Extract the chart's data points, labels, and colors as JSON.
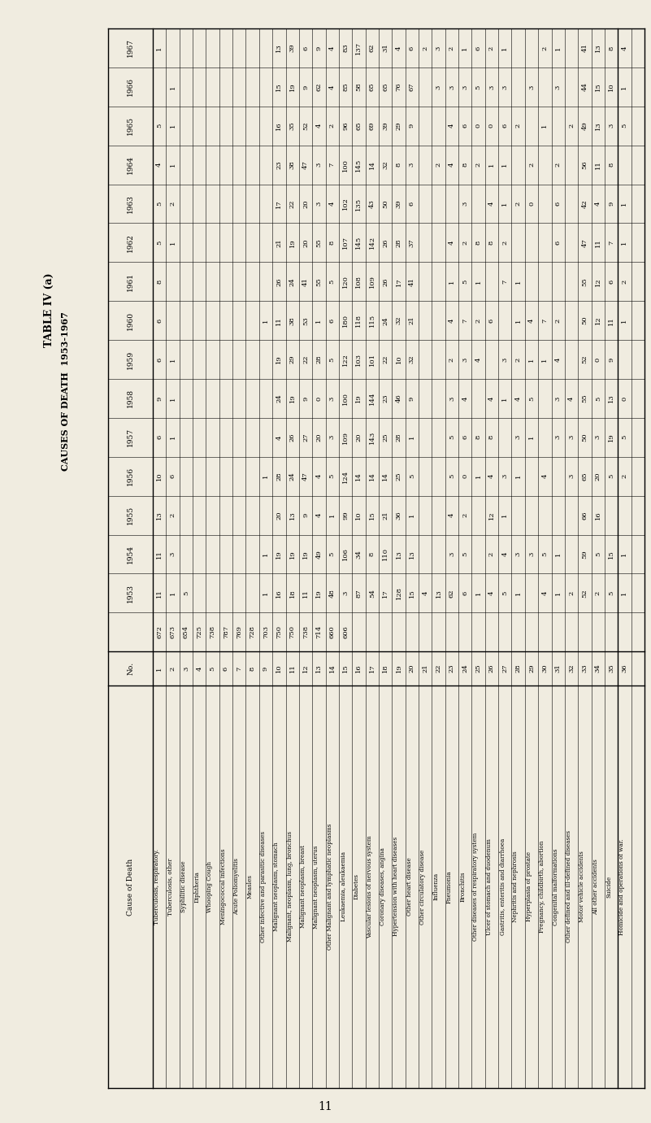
{
  "title1": "TABLE IV (a)",
  "title2": "CAUSES OF DEATH 1953-1967",
  "page_number": "11",
  "bg_color": "#f0ece0",
  "years": [
    "1967",
    "1966",
    "1965",
    "1964",
    "1963",
    "1962",
    "1961",
    "1960",
    "1959",
    "1958",
    "1957",
    "1956",
    "1955",
    "1954",
    "1953"
  ],
  "totals": [
    "672",
    "673",
    "654",
    "725",
    "738",
    "787",
    "769",
    "728",
    "703",
    "750",
    "750",
    "738",
    "714",
    "660",
    "606"
  ],
  "rows": [
    [
      "1",
      "Tuberculosis, respiratory.",
      "1",
      "",
      "5",
      "4",
      "5",
      "5",
      "8",
      "6",
      "6",
      "9",
      "6",
      "10",
      "13",
      "11",
      "11"
    ],
    [
      "2",
      "Tuberculosis, other",
      "",
      "1",
      "1",
      "1",
      "2",
      "1",
      "",
      "",
      "1",
      "1",
      "1",
      "6",
      "2",
      "3",
      "1"
    ],
    [
      "3",
      "Syphilitic disease",
      "",
      "",
      "",
      "",
      "",
      "",
      "",
      "",
      "",
      "",
      "",
      "",
      "",
      "",
      "5"
    ],
    [
      "4",
      "Diphtheria",
      "",
      "",
      "",
      "",
      "",
      "",
      "",
      "",
      "",
      "",
      "",
      "",
      "",
      "",
      ""
    ],
    [
      "5",
      "Whooping Cough",
      "",
      "",
      "",
      "",
      "",
      "",
      "",
      "",
      "",
      "",
      "",
      "",
      "",
      "",
      ""
    ],
    [
      "6",
      "Meningococcal infections",
      "",
      "",
      "",
      "",
      "",
      "",
      "",
      "",
      "",
      "",
      "",
      "",
      "",
      "",
      ""
    ],
    [
      "7",
      "Acute Poliomyelitis",
      "",
      "",
      "",
      "",
      "",
      "",
      "",
      "",
      "",
      "",
      "",
      "",
      "",
      "",
      ""
    ],
    [
      "8",
      "Measles",
      "",
      "",
      "",
      "",
      "",
      "",
      "",
      "",
      "",
      "",
      "",
      "",
      "",
      "",
      ""
    ],
    [
      "9",
      "Other infective and parasitic diseases",
      "",
      "",
      "",
      "",
      "",
      "",
      "",
      "1",
      "",
      "",
      "",
      "1",
      "",
      "1",
      "1"
    ],
    [
      "10",
      "Malignant neoplasm, stomach",
      "13",
      "15",
      "16",
      "23",
      "17",
      "21",
      "26",
      "11",
      "19",
      "24",
      "4",
      "28",
      "20",
      "19",
      "16"
    ],
    [
      "11",
      "Malignant, neoplasm, lung, bronchus",
      "39",
      "19",
      "35",
      "38",
      "22",
      "19",
      "24",
      "38",
      "29",
      "19",
      "26",
      "24",
      "13",
      "19",
      "18"
    ],
    [
      "12",
      "Malignant neoplasm, breast",
      "6",
      "9",
      "52",
      "47",
      "20",
      "20",
      "41",
      "53",
      "22",
      "9",
      "27",
      "47",
      "9",
      "19",
      "11"
    ],
    [
      "13",
      "Malignant neoplasm, uterus",
      "9",
      "62",
      "4",
      "3",
      "3",
      "55",
      "55",
      "1",
      "28",
      "0",
      "20",
      "4",
      "4",
      "49",
      "19"
    ],
    [
      "14",
      "Other Malignant and lymphatic neoplasms",
      "4",
      "4",
      "2",
      "7",
      "4",
      "8",
      "5",
      "6",
      "5",
      "3",
      "3",
      "5",
      "1",
      "5",
      "48"
    ],
    [
      "15",
      "Leukaemia, aleukaemia",
      "83",
      "85",
      "96",
      "100",
      "102",
      "107",
      "120",
      "180",
      "122",
      "100",
      "109",
      "124",
      "99",
      "106",
      "3"
    ],
    [
      "16",
      "Diabetes",
      "137",
      "58",
      "65",
      "145",
      "135",
      "145",
      "108",
      "118",
      "103",
      "19",
      "20",
      "14",
      "10",
      "34",
      "87"
    ],
    [
      "17",
      "Vascular lesions of nervous system",
      "62",
      "65",
      "69",
      "14",
      "43",
      "142",
      "109",
      "115",
      "101",
      "144",
      "143",
      "14",
      "15",
      "8",
      "54"
    ],
    [
      "18",
      "Coronary diseases, angina",
      "31",
      "65",
      "39",
      "32",
      "50",
      "26",
      "26",
      "24",
      "22",
      "23",
      "25",
      "14",
      "21",
      "110",
      "17"
    ],
    [
      "19",
      "Hypertension with heart diseases",
      "4",
      "76",
      "29",
      "8",
      "39",
      "28",
      "17",
      "32",
      "10",
      "46",
      "28",
      "25",
      "36",
      "13",
      "128"
    ],
    [
      "20",
      "Other heart disease",
      "6",
      "67",
      "9",
      "3",
      "6",
      "37",
      "41",
      "21",
      "32",
      "9",
      "1",
      "5",
      "1",
      "13",
      "15"
    ],
    [
      "21",
      "Other circulatory disease",
      "2",
      "",
      "",
      "",
      "",
      "",
      "",
      "",
      "",
      "",
      "",
      "",
      "",
      "",
      "4"
    ],
    [
      "22",
      "Influenza",
      "3",
      "3",
      "",
      "2",
      "",
      "",
      "",
      "",
      "",
      "",
      "",
      "",
      "",
      "",
      "13"
    ],
    [
      "23",
      "Pneumonia",
      "2",
      "3",
      "4",
      "4",
      "",
      "4",
      "1",
      "4",
      "2",
      "3",
      "5",
      "5",
      "4",
      "3",
      "62"
    ],
    [
      "24",
      "Bronchitis",
      "1",
      "3",
      "6",
      "8",
      "3",
      "2",
      "5",
      "7",
      "3",
      "4",
      "6",
      "0",
      "2",
      "5",
      "6"
    ],
    [
      "25",
      "Other diseases of respiratory system",
      "6",
      "5",
      "0",
      "2",
      "",
      "8",
      "1",
      "2",
      "4",
      "",
      "8",
      "1",
      "",
      "",
      "1"
    ],
    [
      "26",
      "Ulcer of stomach and duodenum",
      "2",
      "3",
      "0",
      "1",
      "4",
      "8",
      "",
      "6",
      "",
      "4",
      "8",
      "4",
      "12",
      "2",
      "4"
    ],
    [
      "27",
      "Gastritis, enteritis and diarrhoea",
      "1",
      "3",
      "6",
      "1",
      "1",
      "2",
      "7",
      "",
      "3",
      "1",
      "",
      "3",
      "1",
      "4",
      "5"
    ],
    [
      "28",
      "Nephritis and nephrosis",
      "",
      "",
      "2",
      "",
      "2",
      "",
      "1",
      "1",
      "2",
      "4",
      "3",
      "1",
      "",
      "3",
      "1"
    ],
    [
      "29",
      "Hyperplasia of prostate",
      "",
      "3",
      "",
      "2",
      "0",
      "",
      "",
      "4",
      "1",
      "5",
      "1",
      "",
      "",
      "3",
      ""
    ],
    [
      "30",
      "Pregnancy, childbirth, abortion",
      "2",
      "",
      "1",
      "",
      "",
      "",
      "",
      "7",
      "1",
      "",
      "",
      "4",
      "",
      "5",
      "4"
    ],
    [
      "31",
      "Congenital malformations",
      "1",
      "3",
      "",
      "2",
      "6",
      "6",
      "",
      "2",
      "4",
      "3",
      "3",
      "",
      "",
      "1",
      "1"
    ],
    [
      "32",
      "Other defined and ill-defined diseases",
      "",
      "",
      "2",
      "",
      "",
      "",
      "",
      "",
      "",
      "4",
      "3",
      "3",
      "",
      "",
      "2"
    ],
    [
      "33",
      "Motor vehicle accidents",
      "41",
      "44",
      "49",
      "56",
      "42",
      "47",
      "55",
      "50",
      "52",
      "55",
      "50",
      "65",
      "66",
      "59",
      "52"
    ],
    [
      "34",
      "All other accidents",
      "13",
      "15",
      "13",
      "11",
      "4",
      "11",
      "12",
      "12",
      "0",
      "5",
      "3",
      "20",
      "16",
      "5",
      "2"
    ],
    [
      "35",
      "Suicide",
      "8",
      "10",
      "3",
      "8",
      "9",
      "7",
      "6",
      "11",
      "9",
      "13",
      "19",
      "5",
      "",
      "15",
      "5"
    ],
    [
      "36",
      "Homicide and operations of war.",
      "4",
      "1",
      "5",
      "",
      "1",
      "1",
      "2",
      "1",
      "",
      "0",
      "5",
      "2",
      "",
      "1",
      "1"
    ]
  ]
}
